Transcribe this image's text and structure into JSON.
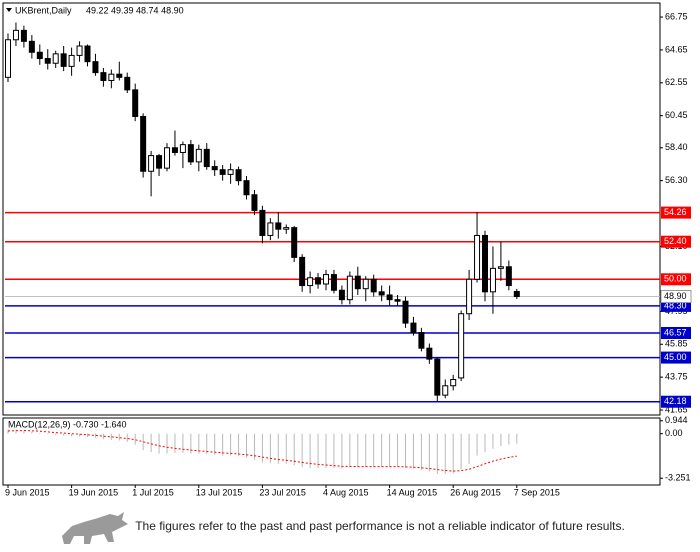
{
  "chart_data": {
    "type": "candlestick",
    "title": "UKBrent,Daily",
    "subtitle": "49.22 49.39 48.74 48.90",
    "categories": [
      "9 Jun 2015",
      null,
      null,
      null,
      null,
      null,
      null,
      null,
      "19 Jun 2015",
      null,
      null,
      null,
      null,
      null,
      null,
      null,
      "1 Jul 2015",
      null,
      null,
      null,
      null,
      null,
      null,
      null,
      "13 Jul 2015",
      null,
      null,
      null,
      null,
      null,
      null,
      null,
      "23 Jul 2015",
      null,
      null,
      null,
      null,
      null,
      null,
      null,
      "4 Aug 2015",
      null,
      null,
      null,
      null,
      null,
      null,
      null,
      "14 Aug 2015",
      null,
      null,
      null,
      null,
      null,
      null,
      null,
      "26 Aug 2015",
      null,
      null,
      null,
      null,
      null,
      null,
      null,
      "7 Sep 2015"
    ],
    "open": [
      62.9,
      65.3,
      65.9,
      65.2,
      64.5,
      64.1,
      63.8,
      64.4,
      63.6,
      64.3,
      64.9,
      63.9,
      63.2,
      62.7,
      63.1,
      62.9,
      62.1,
      60.4,
      56.9,
      57.9,
      57.1,
      58.4,
      58.1,
      58.6,
      57.5,
      58.3,
      57.2,
      57.0,
      56.7,
      57.0,
      56.3,
      55.4,
      54.4,
      52.8,
      53.6,
      53.2,
      53.3,
      51.4,
      49.6,
      50.1,
      49.7,
      50.3,
      49.3,
      48.7,
      50.2,
      49.4,
      50.0,
      49.2,
      49.0,
      48.7,
      48.6,
      47.2,
      46.6,
      45.6,
      44.9,
      42.6,
      43.2,
      43.7,
      47.8,
      50.0,
      52.8,
      49.2,
      50.7,
      50.8,
      49.22
    ],
    "high": [
      65.7,
      66.4,
      66.2,
      65.6,
      65.0,
      64.7,
      64.6,
      64.9,
      64.8,
      65.2,
      65.0,
      64.4,
      63.5,
      63.4,
      63.9,
      63.2,
      62.5,
      60.6,
      58.2,
      58.0,
      58.7,
      59.5,
      58.8,
      58.9,
      58.6,
      58.7,
      57.6,
      57.3,
      57.4,
      57.2,
      56.6,
      55.7,
      54.7,
      53.9,
      54.3,
      53.5,
      53.4,
      51.6,
      50.5,
      50.4,
      50.6,
      50.6,
      49.6,
      50.5,
      50.8,
      50.2,
      50.3,
      49.6,
      49.6,
      49.0,
      48.9,
      47.6,
      46.9,
      45.9,
      45.0,
      43.6,
      43.9,
      48.0,
      50.6,
      54.3,
      53.1,
      52.1,
      52.4,
      51.2,
      49.39
    ],
    "low": [
      62.6,
      64.9,
      64.8,
      64.1,
      63.7,
      63.4,
      63.5,
      63.3,
      63.0,
      63.9,
      63.6,
      63.0,
      62.3,
      62.2,
      62.7,
      61.9,
      60.1,
      56.5,
      55.3,
      56.6,
      56.9,
      57.9,
      57.1,
      57.3,
      56.9,
      57.0,
      56.6,
      56.3,
      56.1,
      56.0,
      55.1,
      54.1,
      52.3,
      52.5,
      52.6,
      52.9,
      51.1,
      49.2,
      49.1,
      49.4,
      49.3,
      49.1,
      48.4,
      48.4,
      49.0,
      48.6,
      48.9,
      48.6,
      48.3,
      48.3,
      46.9,
      46.4,
      45.4,
      44.6,
      42.2,
      42.4,
      42.9,
      43.5,
      47.4,
      49.8,
      48.6,
      47.8,
      49.9,
      49.3,
      48.74
    ],
    "close": [
      65.3,
      65.9,
      65.2,
      64.5,
      64.1,
      63.8,
      64.4,
      63.6,
      64.3,
      64.9,
      63.9,
      63.2,
      62.7,
      63.1,
      62.9,
      62.1,
      60.4,
      56.9,
      57.9,
      57.1,
      58.4,
      58.1,
      58.6,
      57.5,
      58.3,
      57.2,
      57.0,
      56.7,
      57.0,
      56.3,
      55.4,
      54.4,
      52.8,
      53.6,
      53.2,
      53.3,
      51.4,
      49.6,
      50.1,
      49.7,
      50.3,
      49.3,
      48.7,
      50.2,
      49.4,
      50.0,
      49.2,
      49.0,
      48.7,
      48.6,
      47.2,
      46.6,
      45.6,
      44.9,
      42.6,
      43.2,
      43.6,
      47.8,
      50.0,
      52.8,
      49.2,
      50.7,
      50.8,
      49.6,
      48.9
    ],
    "up_color": "#ffffff",
    "down_color": "#000000",
    "ylim": [
      41.46,
      67.52
    ],
    "yticks": [
      66.75,
      64.65,
      62.55,
      60.45,
      {
        "value": 58.4,
        "label": "58.40"
      },
      {
        "value": 56.3,
        "label": "56.30"
      },
      {
        "value": 52.1,
        "label": "52.10"
      },
      47.95,
      45.85,
      43.75,
      41.65
    ],
    "levels": [
      {
        "value": 54.26,
        "label": "54.26",
        "color": "#ff0000"
      },
      {
        "value": 52.4,
        "label": "52.40",
        "color": "#ff0000"
      },
      {
        "value": 50,
        "label": "50.00",
        "color": "#ff0000"
      },
      {
        "value": 48.3,
        "label": "48.30",
        "color": "#0000cc"
      },
      {
        "value": 46.57,
        "label": "46.57",
        "color": "#0000cc"
      },
      {
        "value": 45,
        "label": "45.00",
        "color": "#0000cc"
      },
      {
        "value": 42.18,
        "label": "42.18",
        "color": "#0000cc"
      }
    ],
    "last_price": {
      "value": 48.9,
      "label": "48.90"
    },
    "macd": {
      "title": "MACD(12,26,9) -0.730 -1.640",
      "ylim": [
        -3.6,
        1.0
      ],
      "yticks": [
        {
          "value": 0.944,
          "label": "0.944"
        },
        {
          "value": 0,
          "label": "0.00"
        },
        -3.251
      ],
      "histogram": {
        "color": "#b8b8b8",
        "values": [
          0.3,
          0.3,
          0.25,
          0.15,
          0.05,
          -0.05,
          -0.1,
          -0.15,
          -0.2,
          -0.2,
          -0.25,
          -0.3,
          -0.4,
          -0.45,
          -0.5,
          -0.6,
          -0.8,
          -1.2,
          -1.35,
          -1.45,
          -1.45,
          -1.4,
          -1.4,
          -1.45,
          -1.45,
          -1.5,
          -1.55,
          -1.6,
          -1.6,
          -1.65,
          -1.75,
          -1.9,
          -2.1,
          -2.15,
          -2.2,
          -2.2,
          -2.3,
          -2.45,
          -2.5,
          -2.5,
          -2.5,
          -2.5,
          -2.55,
          -2.45,
          -2.45,
          -2.4,
          -2.4,
          -2.4,
          -2.4,
          -2.4,
          -2.5,
          -2.55,
          -2.65,
          -2.75,
          -2.95,
          -2.95,
          -2.9,
          -2.6,
          -2.2,
          -1.6,
          -1.35,
          -1.1,
          -0.9,
          -0.8,
          -0.73
        ]
      },
      "signal": {
        "color": "#ff0000",
        "values": [
          0.2,
          0.22,
          0.23,
          0.21,
          0.18,
          0.13,
          0.08,
          0.04,
          0.0,
          -0.04,
          -0.08,
          -0.12,
          -0.18,
          -0.23,
          -0.29,
          -0.35,
          -0.44,
          -0.59,
          -0.74,
          -0.88,
          -0.99,
          -1.07,
          -1.14,
          -1.2,
          -1.25,
          -1.3,
          -1.35,
          -1.4,
          -1.44,
          -1.48,
          -1.54,
          -1.61,
          -1.71,
          -1.8,
          -1.88,
          -1.94,
          -2.01,
          -2.1,
          -2.18,
          -2.24,
          -2.29,
          -2.33,
          -2.38,
          -2.39,
          -2.4,
          -2.4,
          -2.4,
          -2.4,
          -2.4,
          -2.4,
          -2.42,
          -2.45,
          -2.49,
          -2.54,
          -2.62,
          -2.69,
          -2.73,
          -2.7,
          -2.6,
          -2.4,
          -2.2,
          -2.0,
          -1.85,
          -1.73,
          -1.64
        ]
      }
    }
  },
  "footer": {
    "text": "The figures refer to the past and past performance is not a reliable indicator of future results."
  }
}
